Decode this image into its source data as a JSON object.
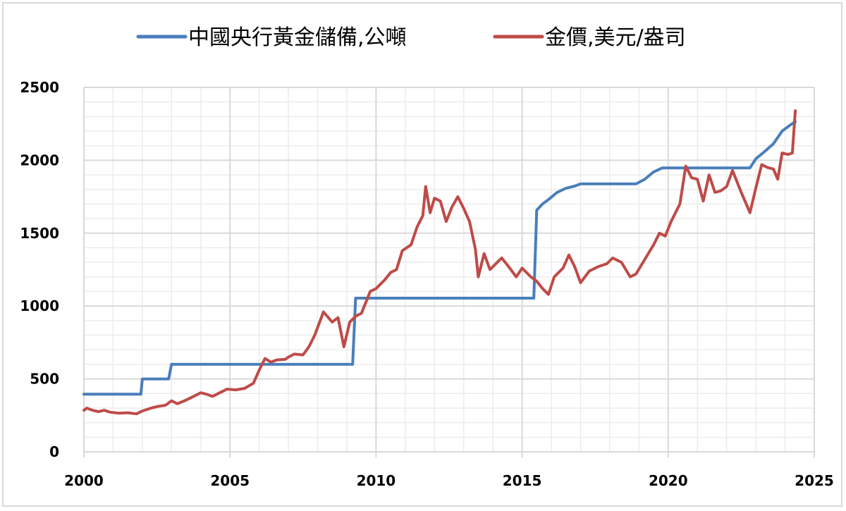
{
  "chart_data": {
    "type": "line",
    "title": "",
    "xlabel": "",
    "ylabel": "",
    "xlim": [
      2000,
      2025
    ],
    "ylim": [
      0,
      2500
    ],
    "x_ticks": [
      "2000",
      "2005",
      "2010",
      "2015",
      "2020",
      "2025"
    ],
    "y_ticks": [
      "0",
      "500",
      "1000",
      "1500",
      "2000",
      "2500"
    ],
    "grid": {
      "major": true,
      "minor": true,
      "x_minor_step": 1,
      "y_minor_step": 100
    },
    "legend": {
      "position": "top"
    },
    "series": [
      {
        "name": "中國央行黃金儲備,公噸",
        "color": "#4a7ebb",
        "points": [
          [
            2000.0,
            395
          ],
          [
            2001.95,
            395
          ],
          [
            2002.0,
            500
          ],
          [
            2002.9,
            500
          ],
          [
            2003.0,
            600
          ],
          [
            2009.2,
            600
          ],
          [
            2009.3,
            1054
          ],
          [
            2015.4,
            1054
          ],
          [
            2015.5,
            1658
          ],
          [
            2015.7,
            1700
          ],
          [
            2015.9,
            1730
          ],
          [
            2016.2,
            1780
          ],
          [
            2016.5,
            1808
          ],
          [
            2016.8,
            1823
          ],
          [
            2017.0,
            1838
          ],
          [
            2018.9,
            1838
          ],
          [
            2019.2,
            1870
          ],
          [
            2019.5,
            1920
          ],
          [
            2019.8,
            1948
          ],
          [
            2022.8,
            1948
          ],
          [
            2023.0,
            2010
          ],
          [
            2023.3,
            2060
          ],
          [
            2023.6,
            2113
          ],
          [
            2023.9,
            2200
          ],
          [
            2024.2,
            2245
          ],
          [
            2024.35,
            2264
          ]
        ]
      },
      {
        "name": "金價,美元/盎司",
        "color": "#be4b48",
        "points": [
          [
            2000.0,
            285
          ],
          [
            2000.1,
            300
          ],
          [
            2000.3,
            285
          ],
          [
            2000.5,
            275
          ],
          [
            2000.7,
            285
          ],
          [
            2000.9,
            272
          ],
          [
            2001.2,
            265
          ],
          [
            2001.5,
            268
          ],
          [
            2001.8,
            260
          ],
          [
            2002.0,
            280
          ],
          [
            2002.3,
            300
          ],
          [
            2002.5,
            310
          ],
          [
            2002.8,
            320
          ],
          [
            2003.0,
            350
          ],
          [
            2003.2,
            330
          ],
          [
            2003.5,
            355
          ],
          [
            2003.8,
            385
          ],
          [
            2004.0,
            405
          ],
          [
            2004.2,
            395
          ],
          [
            2004.4,
            380
          ],
          [
            2004.7,
            410
          ],
          [
            2004.9,
            430
          ],
          [
            2005.2,
            425
          ],
          [
            2005.5,
            435
          ],
          [
            2005.8,
            470
          ],
          [
            2006.0,
            560
          ],
          [
            2006.2,
            640
          ],
          [
            2006.4,
            615
          ],
          [
            2006.6,
            630
          ],
          [
            2006.9,
            635
          ],
          [
            2007.0,
            650
          ],
          [
            2007.2,
            670
          ],
          [
            2007.5,
            665
          ],
          [
            2007.7,
            720
          ],
          [
            2007.9,
            800
          ],
          [
            2008.2,
            960
          ],
          [
            2008.5,
            890
          ],
          [
            2008.7,
            920
          ],
          [
            2008.9,
            720
          ],
          [
            2009.1,
            890
          ],
          [
            2009.3,
            930
          ],
          [
            2009.5,
            950
          ],
          [
            2009.8,
            1100
          ],
          [
            2010.0,
            1120
          ],
          [
            2010.3,
            1180
          ],
          [
            2010.5,
            1230
          ],
          [
            2010.7,
            1250
          ],
          [
            2010.9,
            1380
          ],
          [
            2011.2,
            1420
          ],
          [
            2011.4,
            1540
          ],
          [
            2011.6,
            1620
          ],
          [
            2011.7,
            1820
          ],
          [
            2011.85,
            1640
          ],
          [
            2012.0,
            1740
          ],
          [
            2012.2,
            1720
          ],
          [
            2012.4,
            1580
          ],
          [
            2012.6,
            1680
          ],
          [
            2012.8,
            1750
          ],
          [
            2013.0,
            1670
          ],
          [
            2013.2,
            1580
          ],
          [
            2013.4,
            1390
          ],
          [
            2013.5,
            1200
          ],
          [
            2013.7,
            1360
          ],
          [
            2013.9,
            1250
          ],
          [
            2014.1,
            1290
          ],
          [
            2014.3,
            1330
          ],
          [
            2014.5,
            1280
          ],
          [
            2014.8,
            1200
          ],
          [
            2015.0,
            1260
          ],
          [
            2015.3,
            1200
          ],
          [
            2015.5,
            1170
          ],
          [
            2015.7,
            1120
          ],
          [
            2015.9,
            1080
          ],
          [
            2016.1,
            1200
          ],
          [
            2016.4,
            1260
          ],
          [
            2016.6,
            1350
          ],
          [
            2016.8,
            1270
          ],
          [
            2017.0,
            1160
          ],
          [
            2017.3,
            1240
          ],
          [
            2017.6,
            1270
          ],
          [
            2017.9,
            1290
          ],
          [
            2018.1,
            1330
          ],
          [
            2018.4,
            1300
          ],
          [
            2018.7,
            1200
          ],
          [
            2018.9,
            1220
          ],
          [
            2019.2,
            1320
          ],
          [
            2019.5,
            1420
          ],
          [
            2019.7,
            1500
          ],
          [
            2019.9,
            1480
          ],
          [
            2020.1,
            1580
          ],
          [
            2020.4,
            1700
          ],
          [
            2020.6,
            1960
          ],
          [
            2020.8,
            1880
          ],
          [
            2021.0,
            1870
          ],
          [
            2021.2,
            1720
          ],
          [
            2021.4,
            1900
          ],
          [
            2021.6,
            1780
          ],
          [
            2021.8,
            1790
          ],
          [
            2022.0,
            1820
          ],
          [
            2022.2,
            1930
          ],
          [
            2022.5,
            1780
          ],
          [
            2022.8,
            1640
          ],
          [
            2023.0,
            1810
          ],
          [
            2023.2,
            1970
          ],
          [
            2023.4,
            1950
          ],
          [
            2023.6,
            1940
          ],
          [
            2023.75,
            1870
          ],
          [
            2023.9,
            2050
          ],
          [
            2024.1,
            2040
          ],
          [
            2024.25,
            2050
          ],
          [
            2024.35,
            2340
          ]
        ]
      }
    ]
  },
  "legend": {
    "items": [
      {
        "label": "中國央行黃金儲備,公噸",
        "color": "#4a7ebb"
      },
      {
        "label": "金價,美元/盎司",
        "color": "#be4b48"
      }
    ]
  },
  "axes": {
    "x_labels": [
      "2000",
      "2005",
      "2010",
      "2015",
      "2020",
      "2025"
    ],
    "y_labels": [
      "0",
      "500",
      "1000",
      "1500",
      "2000",
      "2500"
    ]
  }
}
